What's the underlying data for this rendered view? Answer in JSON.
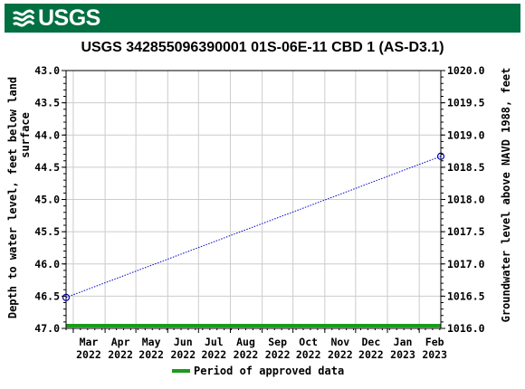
{
  "header": {
    "logo_text": "USGS"
  },
  "chart_data": {
    "type": "line",
    "title": "USGS 342855096390001 01S-06E-11 CBD 1 (AS-D3.1)",
    "ylabel_left": "Depth to water level, feet below land surface",
    "ylabel_left_lines": [
      "Depth to water level, feet below land",
      "surface"
    ],
    "ylabel_right": "Groundwater level above NAVD 1988, feet",
    "y_left_range": [
      43.0,
      47.0
    ],
    "y_left_inverted": true,
    "y_right_range": [
      1016.0,
      1020.0
    ],
    "y_left_ticks": [
      "43.0",
      "43.5",
      "44.0",
      "44.5",
      "45.0",
      "45.5",
      "46.0",
      "46.5",
      "47.0"
    ],
    "y_right_ticks": [
      "1020.0",
      "1019.5",
      "1019.0",
      "1018.5",
      "1018.0",
      "1017.5",
      "1017.0",
      "1016.5",
      "1016.0"
    ],
    "x_ticks": [
      {
        "month": "Mar",
        "year": "2022"
      },
      {
        "month": "Apr",
        "year": "2022"
      },
      {
        "month": "May",
        "year": "2022"
      },
      {
        "month": "Jun",
        "year": "2022"
      },
      {
        "month": "Jul",
        "year": "2022"
      },
      {
        "month": "Aug",
        "year": "2022"
      },
      {
        "month": "Sep",
        "year": "2022"
      },
      {
        "month": "Oct",
        "year": "2022"
      },
      {
        "month": "Nov",
        "year": "2022"
      },
      {
        "month": "Dec",
        "year": "2022"
      },
      {
        "month": "Jan",
        "year": "2023"
      },
      {
        "month": "Feb",
        "year": "2023"
      }
    ],
    "series": [
      {
        "points": [
          {
            "date": "2022-02-22",
            "depth": 46.52
          },
          {
            "date": "2023-02-22",
            "depth": 44.33
          }
        ],
        "color": "#0000cc"
      }
    ],
    "approved_period_color": "#1a9c1a",
    "grid": true,
    "legend": {
      "position": "bottom",
      "label": "Period of approved data"
    }
  }
}
